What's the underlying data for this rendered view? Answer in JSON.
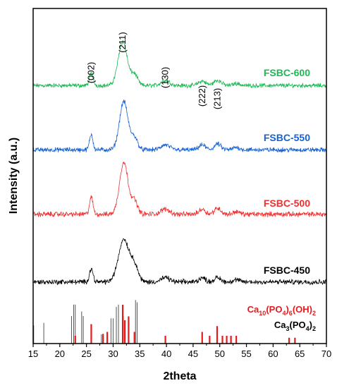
{
  "chart_data": {
    "type": "line",
    "xlabel": "2theta",
    "ylabel": "Intensity (a.u.)",
    "xlim": [
      15,
      70
    ],
    "x_ticks": [
      15,
      20,
      25,
      30,
      35,
      40,
      45,
      50,
      55,
      60,
      65,
      70
    ],
    "grid": false,
    "peak_labels": [
      {
        "text": "(002)",
        "x": 25.9
      },
      {
        "text": "(211)",
        "x": 31.8
      },
      {
        "text": "(130)",
        "x": 39.8
      },
      {
        "text": "(222)",
        "x": 46.7
      },
      {
        "text": "(213)",
        "x": 49.6
      }
    ],
    "series": [
      {
        "name": "FSBC-600",
        "color": "#1db954",
        "baseline": 0.14,
        "scale": 0.8,
        "peaks": [
          [
            25.9,
            0.28,
            0.35
          ],
          [
            31.8,
            1.0,
            0.85
          ],
          [
            34.0,
            0.25,
            0.6
          ],
          [
            39.8,
            0.12,
            0.8
          ],
          [
            46.7,
            0.1,
            0.7
          ],
          [
            49.6,
            0.12,
            0.7
          ],
          [
            53.1,
            0.05,
            0.6
          ]
        ]
      },
      {
        "name": "FSBC-550",
        "color": "#1560d4",
        "baseline": 0.14,
        "scale": 0.88,
        "peaks": [
          [
            25.9,
            0.32,
            0.32
          ],
          [
            32.0,
            1.0,
            0.8
          ],
          [
            34.0,
            0.25,
            0.6
          ],
          [
            39.8,
            0.1,
            0.8
          ],
          [
            46.7,
            0.1,
            0.6
          ],
          [
            49.6,
            0.12,
            0.6
          ],
          [
            53.1,
            0.05,
            0.6
          ]
        ]
      },
      {
        "name": "FSBC-500",
        "color": "#ee3030",
        "baseline": 0.14,
        "scale": 0.9,
        "peaks": [
          [
            25.9,
            0.33,
            0.32
          ],
          [
            32.0,
            1.0,
            0.8
          ],
          [
            34.0,
            0.25,
            0.6
          ],
          [
            39.8,
            0.1,
            0.8
          ],
          [
            46.7,
            0.1,
            0.6
          ],
          [
            49.6,
            0.12,
            0.6
          ],
          [
            53.1,
            0.05,
            0.6
          ]
        ]
      },
      {
        "name": "FSBC-450",
        "color": "#000000",
        "baseline": 0.14,
        "scale": 0.9,
        "peaks": [
          [
            25.9,
            0.25,
            0.35
          ],
          [
            32.0,
            0.82,
            1.0
          ],
          [
            34.0,
            0.3,
            0.7
          ],
          [
            39.8,
            0.08,
            0.8
          ],
          [
            46.7,
            0.08,
            0.6
          ],
          [
            49.6,
            0.08,
            0.6
          ],
          [
            53.1,
            0.04,
            0.6
          ]
        ]
      }
    ],
    "reference_patterns": [
      {
        "name_parts": [
          "Ca",
          "10",
          "(PO",
          "4",
          ")",
          "6",
          "(OH)",
          "2"
        ],
        "color": "#e41a1c",
        "lines": [
          [
            22.9,
            0.2
          ],
          [
            25.9,
            0.5
          ],
          [
            28.1,
            0.25
          ],
          [
            28.9,
            0.3
          ],
          [
            31.8,
            1.0
          ],
          [
            32.2,
            0.6
          ],
          [
            32.9,
            0.7
          ],
          [
            34.0,
            0.3
          ],
          [
            39.8,
            0.2
          ],
          [
            46.7,
            0.3
          ],
          [
            48.1,
            0.2
          ],
          [
            49.5,
            0.45
          ],
          [
            50.5,
            0.2
          ],
          [
            51.3,
            0.2
          ],
          [
            52.1,
            0.2
          ],
          [
            53.1,
            0.2
          ],
          [
            63.0,
            0.15
          ],
          [
            64.1,
            0.15
          ]
        ]
      },
      {
        "name_parts": [
          "Ca",
          "3",
          "(PO",
          "4",
          ")",
          "2"
        ],
        "color": "#555555",
        "lines": [
          [
            15.1,
            0.4
          ],
          [
            17.0,
            0.45
          ],
          [
            22.2,
            0.6
          ],
          [
            22.6,
            0.85
          ],
          [
            22.9,
            0.85
          ],
          [
            24.1,
            0.7
          ],
          [
            24.4,
            0.6
          ],
          [
            27.8,
            0.2
          ],
          [
            29.6,
            0.55
          ],
          [
            30.0,
            0.55
          ],
          [
            30.6,
            0.8
          ],
          [
            31.0,
            0.85
          ],
          [
            31.9,
            0.6
          ],
          [
            34.2,
            0.95
          ],
          [
            34.5,
            0.9
          ]
        ]
      }
    ]
  }
}
